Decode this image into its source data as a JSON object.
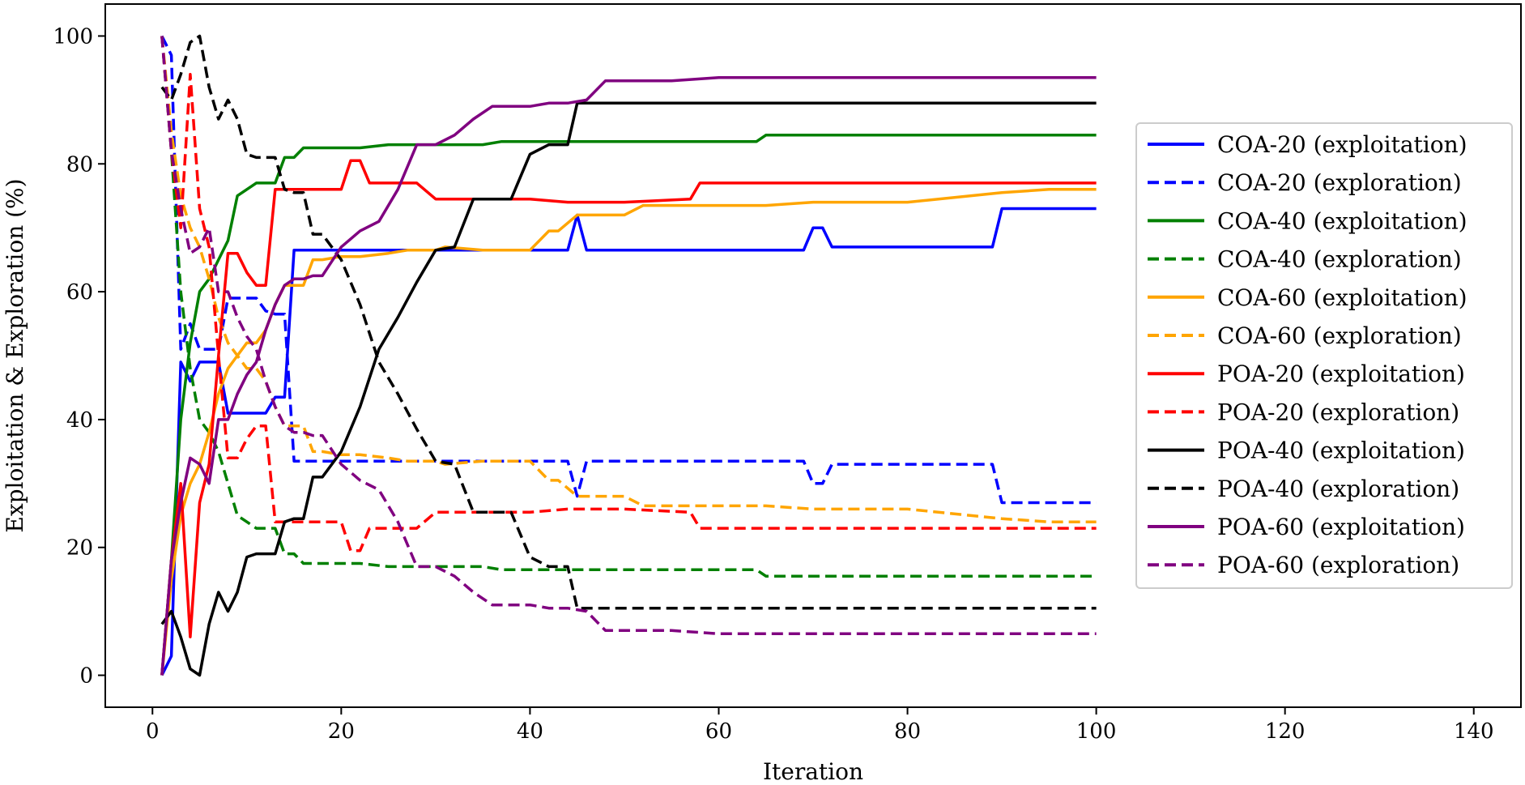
{
  "chart_data": {
    "type": "line",
    "title": "",
    "xlabel": "Iteration",
    "ylabel": "Exploitation & Exploration (%)",
    "xlim": [
      -5,
      145
    ],
    "ylim": [
      -5,
      105
    ],
    "xticks": [
      0,
      20,
      40,
      60,
      80,
      100,
      120,
      140
    ],
    "yticks": [
      0,
      20,
      40,
      60,
      80,
      100
    ],
    "grid": false,
    "legend_position": "center-right",
    "series": [
      {
        "name": "COA-20 (exploitation)",
        "color": "#0000ff",
        "dash": "solid",
        "x": [
          1,
          2,
          3,
          4,
          5,
          6,
          7,
          8,
          9,
          10,
          11,
          12,
          13,
          14,
          15,
          16,
          18,
          20,
          25,
          30,
          35,
          40,
          44,
          45,
          46,
          50,
          60,
          69,
          70,
          71,
          72,
          80,
          89,
          90,
          92,
          100
        ],
        "y": [
          0,
          3,
          49,
          46,
          49,
          49,
          49,
          41,
          41,
          41,
          41,
          41,
          43.5,
          43.5,
          66.5,
          66.5,
          66.5,
          66.5,
          66.5,
          66.5,
          66.5,
          66.5,
          66.5,
          72,
          66.5,
          66.5,
          66.5,
          66.5,
          70,
          70,
          67,
          67,
          67,
          73,
          73,
          73
        ]
      },
      {
        "name": "COA-20 (exploration)",
        "color": "#0000ff",
        "dash": "dashed",
        "x": [
          1,
          2,
          3,
          4,
          5,
          6,
          7,
          8,
          9,
          10,
          11,
          12,
          13,
          14,
          15,
          16,
          20,
          30,
          40,
          44,
          45,
          46,
          50,
          60,
          69,
          70,
          71,
          72,
          80,
          89,
          90,
          92,
          95,
          100
        ],
        "y": [
          100,
          97,
          51,
          55,
          51,
          51,
          51,
          59,
          59,
          59,
          59,
          57,
          56.5,
          56.5,
          33.5,
          33.5,
          33.5,
          33.5,
          33.5,
          33.5,
          28,
          33.5,
          33.5,
          33.5,
          33.5,
          30,
          30,
          33,
          33,
          33,
          27,
          27,
          27,
          27
        ]
      },
      {
        "name": "COA-40 (exploitation)",
        "color": "#008000",
        "dash": "solid",
        "x": [
          1,
          2,
          3,
          4,
          5,
          6,
          7,
          8,
          9,
          10,
          11,
          12,
          13,
          14,
          15,
          16,
          18,
          20,
          22,
          25,
          30,
          35,
          37,
          40,
          50,
          60,
          64,
          65,
          70,
          80,
          90,
          100
        ],
        "y": [
          0,
          18,
          40,
          52,
          60,
          62,
          65,
          68,
          75,
          76,
          77,
          77,
          77,
          81,
          81,
          82.5,
          82.5,
          82.5,
          82.5,
          83,
          83,
          83,
          83.5,
          83.5,
          83.5,
          83.5,
          83.5,
          84.5,
          84.5,
          84.5,
          84.5,
          84.5
        ]
      },
      {
        "name": "COA-40 (exploration)",
        "color": "#008000",
        "dash": "dashed",
        "x": [
          1,
          2,
          3,
          4,
          5,
          6,
          7,
          8,
          9,
          10,
          11,
          12,
          13,
          14,
          15,
          16,
          18,
          20,
          22,
          25,
          30,
          35,
          37,
          40,
          50,
          60,
          64,
          65,
          70,
          80,
          90,
          100
        ],
        "y": [
          100,
          82,
          60,
          48,
          40,
          38,
          35,
          30,
          25,
          24,
          23,
          23,
          23,
          19,
          19,
          17.5,
          17.5,
          17.5,
          17.5,
          17,
          17,
          17,
          16.5,
          16.5,
          16.5,
          16.5,
          16.5,
          15.5,
          15.5,
          15.5,
          15.5,
          15.5
        ]
      },
      {
        "name": "COA-60 (exploitation)",
        "color": "#ffa500",
        "dash": "solid",
        "x": [
          1,
          2,
          3,
          4,
          5,
          6,
          7,
          8,
          9,
          10,
          11,
          12,
          13,
          14,
          15,
          16,
          17,
          18,
          20,
          22,
          25,
          27,
          30,
          31,
          35,
          40,
          42,
          43,
          45,
          50,
          52,
          60,
          65,
          70,
          80,
          90,
          95,
          100
        ],
        "y": [
          0,
          15,
          25,
          30,
          33,
          38,
          44,
          48,
          50,
          52,
          52,
          54,
          58,
          61,
          61,
          61,
          65,
          65,
          65.5,
          65.5,
          66,
          66.5,
          66.5,
          67,
          66.5,
          66.5,
          69.5,
          69.5,
          72,
          72,
          73.5,
          73.5,
          73.5,
          74,
          74,
          75.5,
          76,
          76
        ]
      },
      {
        "name": "COA-60 (exploration)",
        "color": "#ffa500",
        "dash": "dashed",
        "x": [
          1,
          2,
          3,
          4,
          5,
          6,
          7,
          8,
          9,
          10,
          11,
          12,
          13,
          14,
          15,
          16,
          17,
          18,
          20,
          22,
          25,
          27,
          30,
          31,
          35,
          40,
          42,
          43,
          45,
          50,
          52,
          60,
          65,
          70,
          80,
          90,
          95,
          100
        ],
        "y": [
          100,
          85,
          75,
          70,
          67,
          62,
          56,
          52,
          50,
          48,
          48,
          46,
          42,
          39,
          39,
          39,
          35,
          35,
          34.5,
          34.5,
          34,
          33.5,
          33.5,
          33,
          33.5,
          33.5,
          30.5,
          30.5,
          28,
          28,
          26.5,
          26.5,
          26.5,
          26,
          26,
          24.5,
          24,
          24
        ]
      },
      {
        "name": "POA-20 (exploitation)",
        "color": "#ff0000",
        "dash": "solid",
        "x": [
          1,
          2,
          3,
          4,
          5,
          6,
          7,
          8,
          9,
          10,
          11,
          12,
          13,
          14,
          15,
          20,
          21,
          22,
          23,
          25,
          28,
          30,
          40,
          44,
          50,
          57,
          58,
          60,
          70,
          80,
          90,
          100
        ],
        "y": [
          0,
          18,
          30,
          6,
          27,
          33,
          50,
          66,
          66,
          63,
          61,
          61,
          76,
          76,
          76,
          76,
          80.5,
          80.5,
          77,
          77,
          77,
          74.5,
          74.5,
          74,
          74,
          74.5,
          77,
          77,
          77,
          77,
          77,
          77
        ]
      },
      {
        "name": "POA-20 (exploration)",
        "color": "#ff0000",
        "dash": "dashed",
        "x": [
          1,
          2,
          3,
          4,
          5,
          6,
          7,
          8,
          9,
          10,
          11,
          12,
          13,
          14,
          15,
          20,
          21,
          22,
          23,
          25,
          28,
          30,
          40,
          44,
          50,
          57,
          58,
          60,
          70,
          80,
          90,
          100
        ],
        "y": [
          100,
          82,
          70,
          94,
          73,
          67,
          50,
          34,
          34,
          37,
          39,
          39,
          24,
          24,
          24,
          24,
          19.5,
          19.5,
          23,
          23,
          23,
          25.5,
          25.5,
          26,
          26,
          25.5,
          23,
          23,
          23,
          23,
          23,
          23
        ]
      },
      {
        "name": "POA-40 (exploitation)",
        "color": "#000000",
        "dash": "solid",
        "x": [
          1,
          2,
          3,
          4,
          5,
          6,
          7,
          8,
          9,
          10,
          11,
          12,
          13,
          14,
          15,
          16,
          17,
          18,
          20,
          22,
          24,
          26,
          28,
          30,
          32,
          34,
          36,
          38,
          40,
          42,
          44,
          45,
          46,
          50,
          60,
          70,
          80,
          90,
          100
        ],
        "y": [
          8,
          10,
          6,
          1,
          0,
          8,
          13,
          10,
          13,
          18.5,
          19,
          19,
          19,
          24,
          24.5,
          24.5,
          31,
          31,
          35,
          42,
          51,
          56,
          61.5,
          66.5,
          67,
          74.5,
          74.5,
          74.5,
          81.5,
          83,
          83,
          89.5,
          89.5,
          89.5,
          89.5,
          89.5,
          89.5,
          89.5,
          89.5
        ]
      },
      {
        "name": "POA-40 (exploration)",
        "color": "#000000",
        "dash": "dashed",
        "x": [
          1,
          2,
          3,
          4,
          5,
          6,
          7,
          8,
          9,
          10,
          11,
          12,
          13,
          14,
          15,
          16,
          17,
          18,
          20,
          22,
          24,
          26,
          28,
          30,
          32,
          34,
          36,
          38,
          40,
          42,
          44,
          45,
          46,
          50,
          60,
          70,
          80,
          90,
          100
        ],
        "y": [
          92,
          90,
          94,
          99,
          100,
          92,
          87,
          90,
          87,
          81.5,
          81,
          81,
          81,
          76,
          75.5,
          75.5,
          69,
          69,
          65,
          58,
          49,
          44,
          38.5,
          33.5,
          33,
          25.5,
          25.5,
          25.5,
          18.5,
          17,
          17,
          10.5,
          10.5,
          10.5,
          10.5,
          10.5,
          10.5,
          10.5,
          10.5
        ]
      },
      {
        "name": "POA-60 (exploitation)",
        "color": "#800080",
        "dash": "solid",
        "x": [
          1,
          2,
          3,
          4,
          5,
          6,
          7,
          8,
          9,
          10,
          11,
          12,
          13,
          14,
          15,
          16,
          17,
          18,
          20,
          22,
          24,
          26,
          28,
          30,
          32,
          34,
          36,
          38,
          40,
          42,
          44,
          46,
          48,
          50,
          55,
          60,
          65,
          70,
          80,
          90,
          100
        ],
        "y": [
          0,
          18,
          27,
          34,
          33,
          30,
          40,
          40,
          44,
          47,
          49,
          54,
          58,
          61,
          62,
          62,
          62.5,
          62.5,
          67,
          69.5,
          71,
          76,
          83,
          83,
          84.5,
          87,
          89,
          89,
          89,
          89.5,
          89.5,
          90,
          93,
          93,
          93,
          93.5,
          93.5,
          93.5,
          93.5,
          93.5,
          93.5
        ]
      },
      {
        "name": "POA-60 (exploration)",
        "color": "#800080",
        "dash": "dashed",
        "x": [
          1,
          2,
          3,
          4,
          5,
          6,
          7,
          8,
          9,
          10,
          11,
          12,
          13,
          14,
          15,
          16,
          17,
          18,
          20,
          22,
          24,
          26,
          28,
          30,
          32,
          34,
          36,
          38,
          40,
          42,
          44,
          46,
          48,
          50,
          55,
          60,
          65,
          70,
          80,
          90,
          100
        ],
        "y": [
          100,
          82,
          73,
          66,
          67,
          70,
          60,
          60,
          56,
          53,
          51,
          46,
          42,
          39,
          38,
          38,
          37.5,
          37.5,
          33,
          30.5,
          29,
          24,
          17,
          17,
          15.5,
          13,
          11,
          11,
          11,
          10.5,
          10.5,
          10,
          7,
          7,
          7,
          6.5,
          6.5,
          6.5,
          6.5,
          6.5,
          6.5
        ]
      }
    ]
  }
}
